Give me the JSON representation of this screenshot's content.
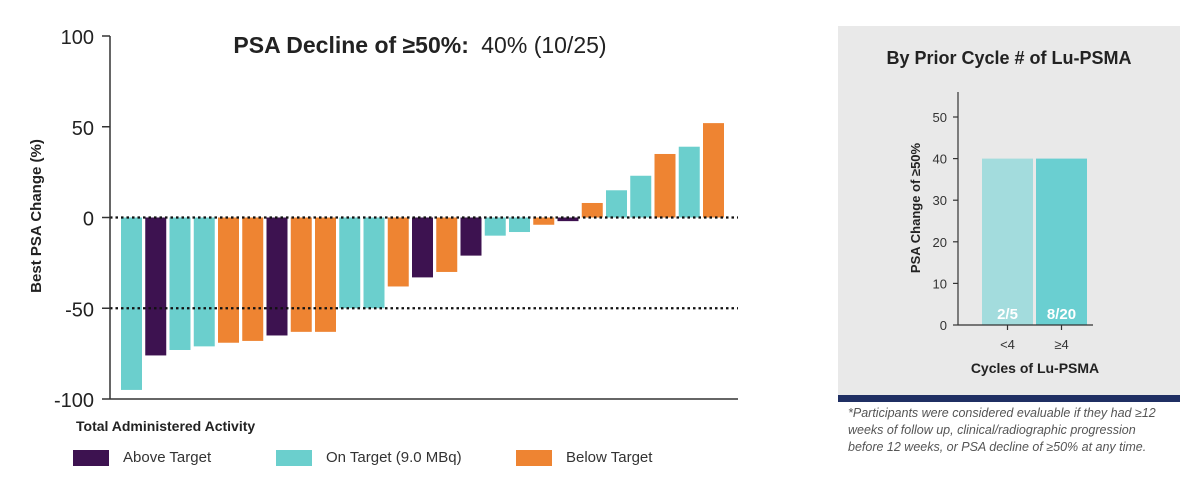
{
  "chart_data": [
    {
      "type": "bar",
      "title": "PSA Decline of ≥50%:",
      "title_value": "40% (10/25)",
      "ylabel": "Best PSA Change (%)",
      "xlabel": "Total Administered Activity",
      "ylim": [
        -100,
        100
      ],
      "yticks": [
        "100",
        "50",
        "0",
        "-50",
        "-100"
      ],
      "ytick_values": [
        100,
        50,
        0,
        -50,
        -100
      ],
      "reference_lines": [
        0,
        -50
      ],
      "legend": [
        {
          "name": "Above Target",
          "color": "#3d1250"
        },
        {
          "name": "On Target (9.0 MBq)",
          "color": "#6bcfcd"
        },
        {
          "name": "Below Target",
          "color": "#ee8432"
        }
      ],
      "bars": [
        {
          "value": -95,
          "group": 1
        },
        {
          "value": -76,
          "group": 0
        },
        {
          "value": -73,
          "group": 1
        },
        {
          "value": -71,
          "group": 1
        },
        {
          "value": -69,
          "group": 2
        },
        {
          "value": -68,
          "group": 2
        },
        {
          "value": -65,
          "group": 0
        },
        {
          "value": -63,
          "group": 2
        },
        {
          "value": -63,
          "group": 2
        },
        {
          "value": -50,
          "group": 1
        },
        {
          "value": -50,
          "group": 1
        },
        {
          "value": -38,
          "group": 2
        },
        {
          "value": -33,
          "group": 0
        },
        {
          "value": -30,
          "group": 2
        },
        {
          "value": -21,
          "group": 0
        },
        {
          "value": -10,
          "group": 1
        },
        {
          "value": -8,
          "group": 1
        },
        {
          "value": -4,
          "group": 2
        },
        {
          "value": -2,
          "group": 0
        },
        {
          "value": 8,
          "group": 2
        },
        {
          "value": 15,
          "group": 1
        },
        {
          "value": 23,
          "group": 1
        },
        {
          "value": 35,
          "group": 2
        },
        {
          "value": 39,
          "group": 1
        },
        {
          "value": 52,
          "group": 2
        }
      ]
    },
    {
      "type": "bar",
      "title": "By Prior Cycle # of Lu-PSMA",
      "ylabel": "PSA Change of ≥50%",
      "xlabel": "Cycles of Lu-PSMA",
      "ylim": [
        0,
        50
      ],
      "yticks": [
        "50",
        "40",
        "30",
        "20",
        "10",
        "0"
      ],
      "ytick_values": [
        50,
        40,
        30,
        20,
        10,
        0
      ],
      "categories": [
        "<4",
        "≥4"
      ],
      "values": [
        40,
        40
      ],
      "labels": [
        "2/5",
        "8/20"
      ],
      "colors": [
        "#a3dcdd",
        "#6acfd1"
      ]
    }
  ],
  "footnote": "*Participants were considered evaluable if they had ≥12 weeks of follow up, clinical/radiographic progression before 12 weeks, or PSA decline of ≥50% at any time."
}
